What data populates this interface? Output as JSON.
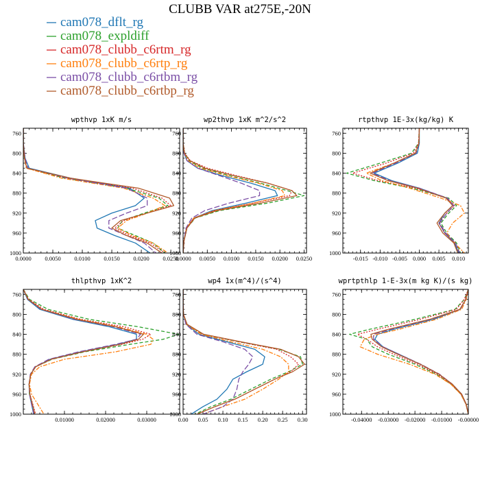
{
  "title": "CLUBB VAR at275E,-20N",
  "legend": [
    {
      "name": "cam078_dflt_rg",
      "color": "#1f77b4",
      "dash": "solid"
    },
    {
      "name": "cam078_expldiff",
      "color": "#2ca02c",
      "dash": "dashed"
    },
    {
      "name": "cam078_clubb_c6rtm_rg",
      "color": "#d62728",
      "dash": "dotted"
    },
    {
      "name": "cam078_clubb_c6rtp_rg",
      "color": "#ff7f0e",
      "dash": "dashdot"
    },
    {
      "name": "cam078_clubb_c6rtbm_rg",
      "color": "#7b4fa6",
      "dash": "longdash"
    },
    {
      "name": "cam078_clubb_c6rtbp_rg",
      "color": "#b05a2a",
      "dash": "solid"
    }
  ],
  "chart_data": [
    {
      "type": "line",
      "title": "wpthvp  1xK m/s",
      "ylabel": "",
      "xlabel": "",
      "xlim": [
        0.0,
        0.0265
      ],
      "ylim": [
        1000,
        750
      ],
      "xticks": [
        0.0,
        0.005,
        0.01,
        0.015,
        0.02,
        0.025
      ],
      "xtick_labels": [
        "0.0000",
        "0.0050",
        "0.0100",
        "0.0150",
        "0.0200",
        "0.0250"
      ],
      "yticks": [
        760,
        800,
        840,
        880,
        920,
        960,
        1000
      ],
      "y": [
        750,
        780,
        810,
        830,
        850,
        870,
        890,
        905,
        920,
        935,
        950,
        965,
        980,
        1000
      ],
      "series": [
        {
          "name": "cam078_dflt_rg",
          "x": [
            0.0,
            0.0,
            0.0003,
            0.001,
            0.008,
            0.018,
            0.0205,
            0.019,
            0.015,
            0.0122,
            0.0125,
            0.0155,
            0.019,
            0.0215
          ]
        },
        {
          "name": "cam078_expldiff",
          "x": [
            0.0,
            0.0,
            0.0002,
            0.0006,
            0.007,
            0.0175,
            0.023,
            0.0245,
            0.0205,
            0.0168,
            0.016,
            0.019,
            0.022,
            0.024
          ]
        },
        {
          "name": "cam078_clubb_c6rtm_rg",
          "x": [
            0.0,
            0.0,
            0.0002,
            0.0006,
            0.0075,
            0.0185,
            0.0235,
            0.025,
            0.021,
            0.017,
            0.0155,
            0.018,
            0.0215,
            0.024
          ]
        },
        {
          "name": "cam078_clubb_c6rtp_rg",
          "x": [
            0.0,
            0.0,
            0.0002,
            0.0005,
            0.0065,
            0.017,
            0.022,
            0.024,
            0.021,
            0.0175,
            0.016,
            0.0185,
            0.022,
            0.0245
          ]
        },
        {
          "name": "cam078_clubb_c6rtbm_rg",
          "x": [
            0.0,
            0.0,
            0.0003,
            0.0008,
            0.0075,
            0.0175,
            0.021,
            0.021,
            0.0175,
            0.0145,
            0.0145,
            0.0175,
            0.0205,
            0.0225
          ]
        },
        {
          "name": "cam078_clubb_c6rtbp_rg",
          "x": [
            0.0,
            0.0,
            0.0002,
            0.0006,
            0.008,
            0.0195,
            0.0248,
            0.0255,
            0.021,
            0.0165,
            0.015,
            0.0175,
            0.021,
            0.0235
          ]
        }
      ]
    },
    {
      "type": "line",
      "title": "wp2thvp  1xK m^2/s^2",
      "ylabel": "",
      "xlabel": "",
      "xlim": [
        0.0,
        0.0255
      ],
      "ylim": [
        1000,
        750
      ],
      "xticks": [
        0.0,
        0.005,
        0.01,
        0.015,
        0.02,
        0.025
      ],
      "xtick_labels": [
        "0.0000",
        "0.0050",
        "0.0100",
        "0.0150",
        "0.0200",
        "0.0250"
      ],
      "yticks": [
        760,
        800,
        840,
        880,
        920,
        960,
        1000
      ],
      "y": [
        750,
        780,
        800,
        815,
        830,
        845,
        860,
        875,
        885,
        900,
        915,
        930,
        950,
        975,
        1000
      ],
      "series": [
        {
          "name": "cam078_dflt_rg",
          "x": [
            0.0,
            0.0,
            0.0002,
            0.0008,
            0.003,
            0.008,
            0.014,
            0.019,
            0.0195,
            0.013,
            0.006,
            0.0022,
            0.0007,
            0.0002,
            0.0
          ]
        },
        {
          "name": "cam078_expldiff",
          "x": [
            0.0,
            0.0,
            0.0003,
            0.0012,
            0.004,
            0.0095,
            0.016,
            0.0215,
            0.025,
            0.0175,
            0.0075,
            0.0025,
            0.0008,
            0.0002,
            0.0
          ]
        },
        {
          "name": "cam078_clubb_c6rtm_rg",
          "x": [
            0.0,
            0.0,
            0.0003,
            0.0015,
            0.005,
            0.011,
            0.0175,
            0.0225,
            0.022,
            0.0145,
            0.0065,
            0.0022,
            0.0007,
            0.0002,
            0.0
          ]
        },
        {
          "name": "cam078_clubb_c6rtp_rg",
          "x": [
            0.0,
            0.0,
            0.0002,
            0.001,
            0.0035,
            0.009,
            0.0155,
            0.0205,
            0.021,
            0.0145,
            0.0065,
            0.0022,
            0.0007,
            0.0002,
            0.0
          ]
        },
        {
          "name": "cam078_clubb_c6rtbm_rg",
          "x": [
            0.0,
            0.0,
            0.0002,
            0.0008,
            0.003,
            0.0075,
            0.012,
            0.0158,
            0.0158,
            0.0095,
            0.0045,
            0.0018,
            0.0006,
            0.0002,
            0.0
          ]
        },
        {
          "name": "cam078_clubb_c6rtbp_rg",
          "x": [
            0.0,
            0.0,
            0.0003,
            0.0014,
            0.0045,
            0.0105,
            0.0175,
            0.0225,
            0.0235,
            0.016,
            0.007,
            0.0024,
            0.0008,
            0.0002,
            0.0
          ]
        }
      ]
    },
    {
      "type": "line",
      "title": "rtpthvp  1E-3x(kg/kg) K",
      "ylabel": "",
      "xlabel": "",
      "xlim": [
        -0.0195,
        0.0125
      ],
      "ylim": [
        1000,
        750
      ],
      "xticks": [
        -0.015,
        -0.01,
        -0.005,
        0.0,
        0.005,
        0.01
      ],
      "xtick_labels": [
        "-0.015",
        "-0.010",
        "-0.005",
        "0.000",
        "0.005",
        "0.010"
      ],
      "yticks": [
        760,
        800,
        840,
        880,
        920,
        960,
        1000
      ],
      "y": [
        750,
        780,
        800,
        820,
        840,
        855,
        870,
        890,
        905,
        920,
        940,
        960,
        980,
        1000
      ],
      "series": [
        {
          "name": "cam078_dflt_rg",
          "x": [
            0.0,
            0.0,
            -0.0005,
            -0.0055,
            -0.0115,
            -0.007,
            0.0,
            0.007,
            0.0085,
            0.0065,
            0.005,
            0.0065,
            0.009,
            0.01
          ]
        },
        {
          "name": "cam078_expldiff",
          "x": [
            0.0,
            -0.0002,
            -0.002,
            -0.01,
            -0.0185,
            -0.0115,
            -0.002,
            0.0075,
            0.0095,
            0.0075,
            0.0055,
            0.007,
            0.0095,
            0.0105
          ]
        },
        {
          "name": "cam078_clubb_c6rtm_rg",
          "x": [
            0.0,
            -0.0002,
            -0.0015,
            -0.0085,
            -0.017,
            -0.0105,
            -0.001,
            0.007,
            0.009,
            0.007,
            0.005,
            0.0065,
            0.0092,
            0.0102
          ]
        },
        {
          "name": "cam078_clubb_c6rtp_rg",
          "x": [
            0.0,
            -0.0001,
            -0.001,
            -0.0065,
            -0.0135,
            -0.0095,
            -0.0025,
            0.0055,
            0.0105,
            0.0115,
            0.0085,
            0.007,
            0.009,
            0.0115
          ]
        },
        {
          "name": "cam078_clubb_c6rtbm_rg",
          "x": [
            0.0,
            -0.0001,
            -0.0008,
            -0.006,
            -0.012,
            -0.0075,
            0.0,
            0.0072,
            0.0088,
            0.007,
            0.0052,
            0.0067,
            0.0092,
            0.0103
          ]
        },
        {
          "name": "cam078_clubb_c6rtbp_rg",
          "x": [
            0.0,
            -0.0001,
            -0.001,
            -0.0065,
            -0.0125,
            -0.008,
            -0.0005,
            0.0068,
            0.0085,
            0.0065,
            0.0045,
            0.006,
            0.0088,
            0.0098
          ]
        }
      ]
    },
    {
      "type": "line",
      "title": "thlpthvp  1xK^2",
      "ylabel": "",
      "xlabel": "",
      "xlim": [
        0.0,
        0.038
      ],
      "ylim": [
        1000,
        750
      ],
      "xticks": [
        0.01,
        0.02,
        0.03
      ],
      "xtick_labels": [
        "0.01000",
        "0.02000",
        "0.03000"
      ],
      "yticks": [
        760,
        800,
        840,
        880,
        920,
        960,
        1000
      ],
      "y": [
        750,
        770,
        790,
        810,
        825,
        840,
        850,
        860,
        875,
        890,
        905,
        920,
        940,
        960,
        980,
        1000
      ],
      "series": [
        {
          "name": "cam078_dflt_rg",
          "x": [
            0.0,
            0.001,
            0.004,
            0.012,
            0.021,
            0.0275,
            0.0275,
            0.023,
            0.014,
            0.0065,
            0.003,
            0.0018,
            0.0014,
            0.0015,
            0.002,
            0.0025
          ]
        },
        {
          "name": "cam078_expldiff",
          "x": [
            0.0,
            0.0015,
            0.006,
            0.016,
            0.028,
            0.0378,
            0.034,
            0.026,
            0.015,
            0.007,
            0.003,
            0.0018,
            0.0014,
            0.0015,
            0.0022,
            0.0028
          ]
        },
        {
          "name": "cam078_clubb_c6rtm_rg",
          "x": [
            0.0,
            0.0013,
            0.005,
            0.014,
            0.0245,
            0.031,
            0.029,
            0.024,
            0.0145,
            0.0068,
            0.003,
            0.0018,
            0.0014,
            0.0016,
            0.0023,
            0.003
          ]
        },
        {
          "name": "cam078_clubb_c6rtp_rg",
          "x": [
            0.0,
            0.0012,
            0.0045,
            0.0135,
            0.023,
            0.03,
            0.0315,
            0.031,
            0.0225,
            0.01,
            0.004,
            0.002,
            0.0015,
            0.002,
            0.0035,
            0.005
          ]
        },
        {
          "name": "cam078_clubb_c6rtbm_rg",
          "x": [
            0.0,
            0.0011,
            0.0043,
            0.0125,
            0.022,
            0.0285,
            0.0275,
            0.0225,
            0.0135,
            0.0062,
            0.0028,
            0.0017,
            0.0014,
            0.0015,
            0.002,
            0.0026
          ]
        },
        {
          "name": "cam078_clubb_c6rtbp_rg",
          "x": [
            0.0,
            0.0012,
            0.0045,
            0.013,
            0.0225,
            0.0292,
            0.028,
            0.0235,
            0.0145,
            0.0068,
            0.003,
            0.0018,
            0.0014,
            0.0016,
            0.0022,
            0.0028
          ]
        }
      ]
    },
    {
      "type": "line",
      "title": "wp4  1x(m^4)/(s^4)",
      "ylabel": "",
      "xlabel": "",
      "xlim": [
        0.0,
        0.31
      ],
      "ylim": [
        1000,
        750
      ],
      "xticks": [
        0.0,
        0.05,
        0.1,
        0.15,
        0.2,
        0.25,
        0.3
      ],
      "xtick_labels": [
        "0.00",
        "0.05",
        "0.10",
        "0.15",
        "0.20",
        "0.25",
        "0.30"
      ],
      "yticks": [
        760,
        800,
        840,
        880,
        920,
        960,
        1000
      ],
      "y": [
        750,
        780,
        800,
        820,
        840,
        855,
        870,
        885,
        900,
        915,
        930,
        950,
        970,
        985,
        1000
      ],
      "series": [
        {
          "name": "cam078_dflt_rg",
          "x": [
            0.0,
            0.0,
            0.001,
            0.008,
            0.04,
            0.11,
            0.18,
            0.205,
            0.2,
            0.16,
            0.125,
            0.11,
            0.085,
            0.05,
            0.02
          ]
        },
        {
          "name": "cam078_expldiff",
          "x": [
            0.0,
            0.0,
            0.001,
            0.01,
            0.05,
            0.14,
            0.24,
            0.295,
            0.3,
            0.265,
            0.22,
            0.17,
            0.12,
            0.07,
            0.03
          ]
        },
        {
          "name": "cam078_clubb_c6rtm_rg",
          "x": [
            0.0,
            0.0,
            0.001,
            0.01,
            0.05,
            0.14,
            0.235,
            0.27,
            0.29,
            0.27,
            0.23,
            0.18,
            0.13,
            0.08,
            0.035
          ]
        },
        {
          "name": "cam078_clubb_c6rtp_rg",
          "x": [
            0.0,
            0.0,
            0.001,
            0.008,
            0.045,
            0.12,
            0.2,
            0.245,
            0.265,
            0.265,
            0.24,
            0.2,
            0.155,
            0.1,
            0.05
          ]
        },
        {
          "name": "cam078_clubb_c6rtbm_rg",
          "x": [
            0.0,
            0.0,
            0.001,
            0.007,
            0.035,
            0.1,
            0.155,
            0.175,
            0.165,
            0.15,
            0.14,
            0.135,
            0.125,
            0.1,
            0.05
          ]
        },
        {
          "name": "cam078_clubb_c6rtbp_rg",
          "x": [
            0.0,
            0.0,
            0.001,
            0.01,
            0.052,
            0.145,
            0.245,
            0.29,
            0.305,
            0.275,
            0.23,
            0.18,
            0.13,
            0.08,
            0.035
          ]
        }
      ]
    },
    {
      "type": "line",
      "title": "wprtpthlp  1-E-3x(m kg K)/(s kg)",
      "ylabel": "",
      "xlabel": "",
      "xlim": [
        -0.047,
        0.0
      ],
      "ylim": [
        1000,
        750
      ],
      "xticks": [
        -0.04,
        -0.03,
        -0.02,
        -0.01,
        0.0
      ],
      "xtick_labels": [
        "-0.04000",
        "-0.03000",
        "-0.02000",
        "-0.01000",
        "-0.00000"
      ],
      "yticks": [
        760,
        800,
        840,
        880,
        920,
        960,
        1000
      ],
      "y": [
        750,
        770,
        790,
        810,
        830,
        840,
        850,
        865,
        880,
        900,
        920,
        940,
        960,
        980,
        1000
      ],
      "series": [
        {
          "name": "cam078_dflt_rg",
          "x": [
            0.0,
            -0.001,
            -0.003,
            -0.013,
            -0.028,
            -0.034,
            -0.035,
            -0.032,
            -0.026,
            -0.018,
            -0.011,
            -0.006,
            -0.0025,
            -0.0008,
            0.0
          ]
        },
        {
          "name": "cam078_expldiff",
          "x": [
            0.0,
            -0.0015,
            -0.005,
            -0.02,
            -0.037,
            -0.0445,
            -0.038,
            -0.036,
            -0.03,
            -0.02,
            -0.012,
            -0.0065,
            -0.0028,
            -0.0009,
            0.0
          ]
        },
        {
          "name": "cam078_clubb_c6rtm_rg",
          "x": [
            0.0,
            -0.0015,
            -0.0045,
            -0.018,
            -0.034,
            -0.0415,
            -0.038,
            -0.034,
            -0.028,
            -0.019,
            -0.0115,
            -0.0063,
            -0.0027,
            -0.0009,
            0.0
          ]
        },
        {
          "name": "cam078_clubb_c6rtp_rg",
          "x": [
            0.0,
            -0.0008,
            -0.0025,
            -0.012,
            -0.026,
            -0.034,
            -0.039,
            -0.0405,
            -0.034,
            -0.022,
            -0.0125,
            -0.0065,
            -0.0028,
            -0.0009,
            0.0
          ]
        },
        {
          "name": "cam078_clubb_c6rtbm_rg",
          "x": [
            0.0,
            -0.001,
            -0.003,
            -0.014,
            -0.029,
            -0.0355,
            -0.0355,
            -0.032,
            -0.026,
            -0.0178,
            -0.0108,
            -0.006,
            -0.0025,
            -0.0008,
            0.0
          ]
        },
        {
          "name": "cam078_clubb_c6rtbp_rg",
          "x": [
            0.0,
            -0.001,
            -0.0032,
            -0.0145,
            -0.03,
            -0.0365,
            -0.036,
            -0.0325,
            -0.0265,
            -0.018,
            -0.011,
            -0.006,
            -0.0025,
            -0.0008,
            0.0
          ]
        }
      ]
    }
  ]
}
